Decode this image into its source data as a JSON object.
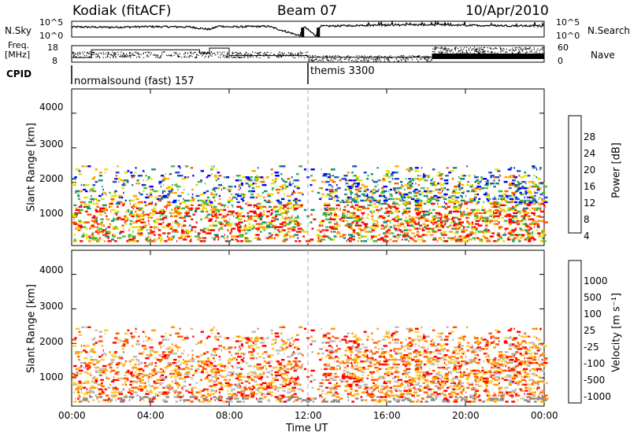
{
  "header": {
    "station": "Kodiak (fitACF)",
    "beam": "Beam 07",
    "date": "10/Apr/2010"
  },
  "panel_labels": {
    "nsky": "N.Sky",
    "freq_line1": "Freq.",
    "freq_line2": "[MHz]",
    "cpid": "CPID",
    "nsearch": "N.Search",
    "nave": "Nave"
  },
  "control_programs": [
    {
      "name": "normalsound (fast) 157",
      "start_hour": 0
    },
    {
      "name": "themis 3300",
      "start_hour": 12
    }
  ],
  "colors": {
    "power_scale": [
      "#0000ff",
      "#1e4ec8",
      "#1a8a7a",
      "#46b846",
      "#e8e000",
      "#ffa500",
      "#ff5a00",
      "#ff0000"
    ],
    "velocity_scale": [
      "#ff0000",
      "#ff5500",
      "#ff9900",
      "#ffcc33",
      "#bbbbbb",
      "#8ad64a",
      "#3aa83a",
      "#2e7a6a",
      "#2a5fb8",
      "#1010c8"
    ],
    "ground_scatter": "#888888"
  },
  "chart_data": [
    {
      "type": "line",
      "panel": "noise",
      "left_axis": {
        "label": "N.Sky",
        "tick_labels": [
          "10^5",
          "10^0"
        ]
      },
      "right_axis": {
        "label": "N.Search",
        "tick_labels": [
          "10^5",
          "10^0"
        ]
      },
      "x": [
        0,
        2,
        4,
        6,
        7,
        7.5,
        8,
        10,
        11.6,
        11.8,
        12.4,
        12.6,
        14,
        16,
        18,
        20,
        22,
        24
      ],
      "y": [
        3.2,
        3.1,
        3.3,
        3.2,
        2.4,
        3.5,
        3.2,
        3.4,
        0.4,
        3.3,
        0.4,
        3.4,
        3.6,
        3.8,
        3.9,
        3.7,
        3.6,
        3.5
      ]
    },
    {
      "type": "line",
      "panel": "frequency_nave",
      "left_axis": {
        "label": "Freq. [MHz]",
        "tick_labels": [
          "18",
          "8"
        ]
      },
      "right_axis": {
        "label": "Nave",
        "tick_labels": [
          "60",
          "0"
        ]
      },
      "frequency": {
        "x": [
          0,
          1,
          4,
          6.5,
          7,
          8,
          12,
          24
        ],
        "y": [
          10.8,
          15.5,
          15.5,
          13.5,
          16.5,
          12,
          11,
          11
        ]
      },
      "nave": {
        "x": [
          0,
          6,
          12,
          18,
          18.3,
          24
        ],
        "y": [
          25,
          28,
          15,
          15,
          45,
          45
        ]
      }
    },
    {
      "type": "heatmap",
      "panel": "power",
      "x_range_hours": [
        0,
        24
      ],
      "ylabel": "Slant Range [km]",
      "ylim": [
        180,
        4700
      ],
      "yticks": [
        1000,
        2000,
        3000,
        4000
      ],
      "colorbar": {
        "label": "Power [dB]",
        "ticks": [
          4,
          8,
          12,
          16,
          20,
          24,
          28
        ],
        "range": [
          0,
          32
        ]
      },
      "scatter_regions": [
        {
          "x": [
            0,
            11.5
          ],
          "y": [
            300,
            2500
          ],
          "value": 14
        },
        {
          "x": [
            12.8,
            24
          ],
          "y": [
            300,
            2500
          ],
          "value": 20
        },
        {
          "x": [
            0,
            24
          ],
          "y": [
            250,
            480
          ],
          "value": 6
        }
      ]
    },
    {
      "type": "heatmap",
      "panel": "velocity",
      "x_range_hours": [
        0,
        24
      ],
      "ylabel": "Slant Range [km]",
      "ylim": [
        180,
        4700
      ],
      "yticks": [
        1000,
        2000,
        3000,
        4000
      ],
      "colorbar": {
        "label": "Velocity [m s⁻¹]",
        "ticks": [
          -1000,
          -500,
          -100,
          -25,
          25,
          100,
          500,
          1000
        ]
      },
      "scatter_regions": [
        {
          "x": [
            0,
            11.5
          ],
          "y": [
            300,
            2500
          ],
          "value": -100
        },
        {
          "x": [
            12.8,
            24
          ],
          "y": [
            300,
            2500
          ],
          "value": -300
        }
      ]
    }
  ],
  "x_axis": {
    "label": "Time UT",
    "tick_labels": [
      "00:00",
      "04:00",
      "08:00",
      "12:00",
      "16:00",
      "20:00",
      "00:00"
    ]
  }
}
